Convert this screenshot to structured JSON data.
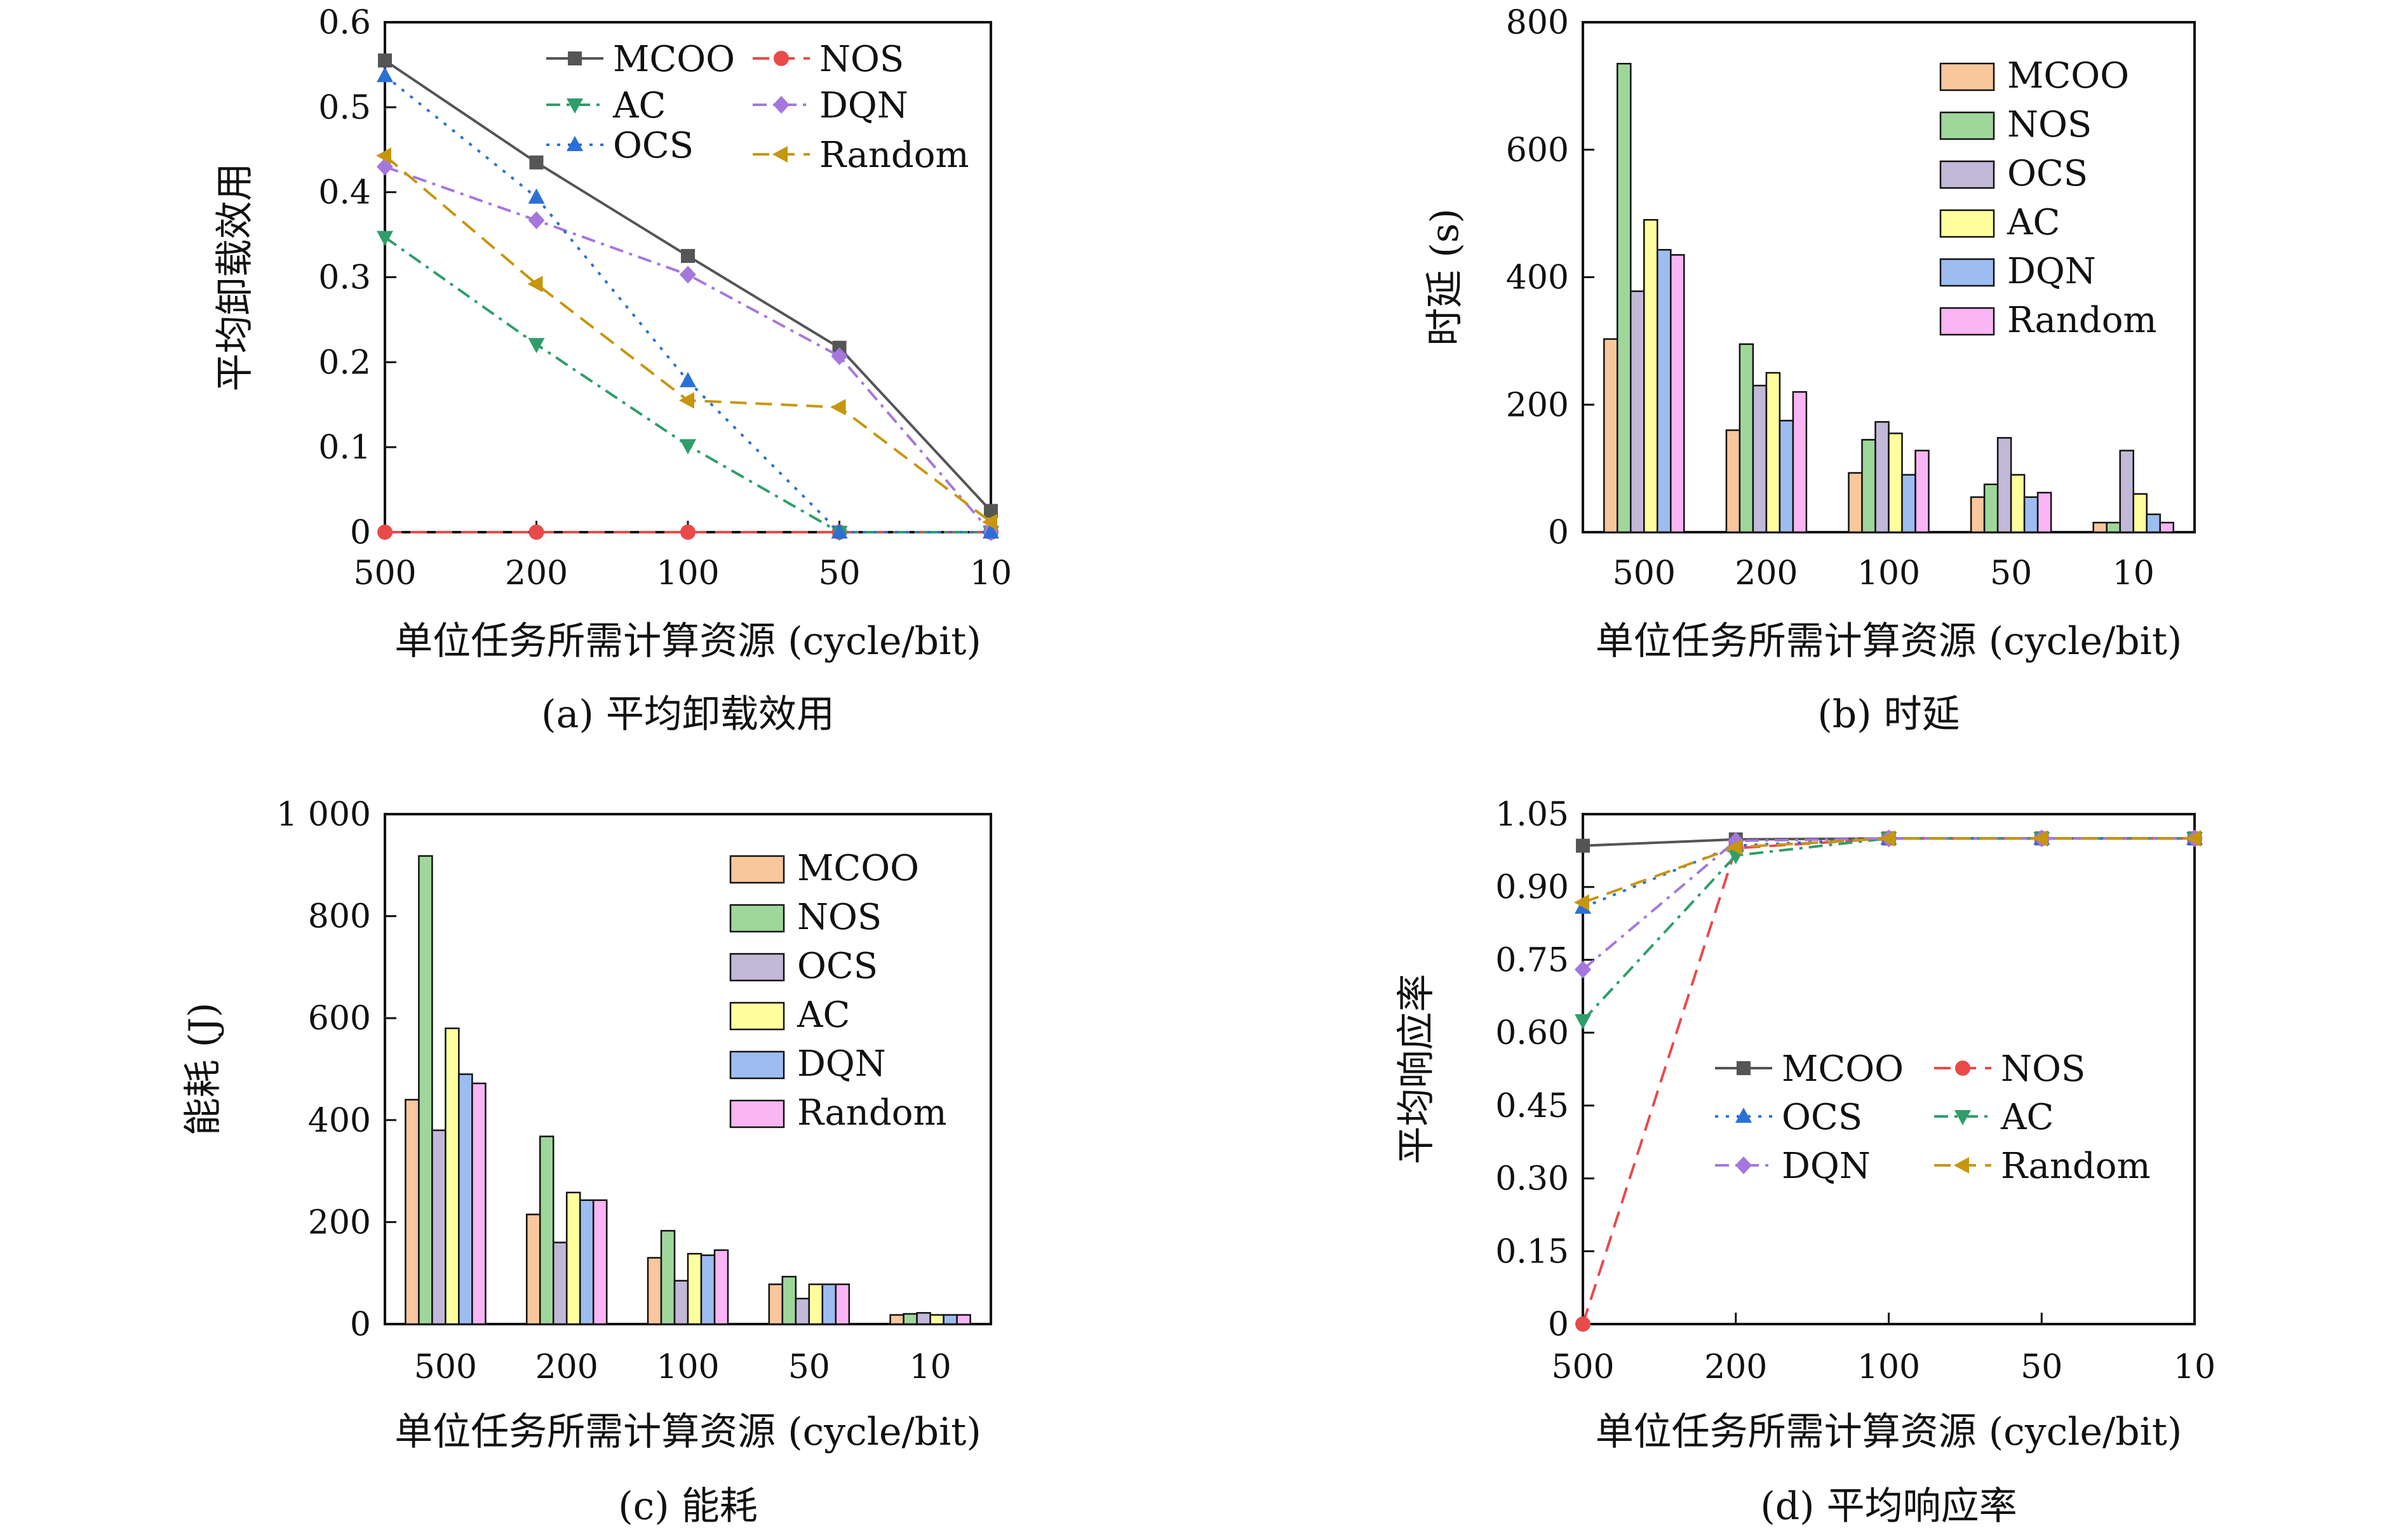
{
  "colors": {
    "MCOO": "#555555",
    "NOS": "#e84a4a",
    "OCS": "#2b70d6",
    "AC": "#2e9e6a",
    "DQN": "#a577dd",
    "Random": "#c6960e"
  },
  "bar_colors": {
    "MCOO": "#f8c79b",
    "NOS": "#9fd79a",
    "OCS": "#c2b8d8",
    "AC": "#ffff9e",
    "DQN": "#9dbdf1",
    "Random": "#f9b5f4"
  },
  "chart_data": [
    {
      "id": "a",
      "type": "line",
      "caption": "(a) 平均卸载效用",
      "xlabel": "单位任务所需计算资源 (cycle/bit)",
      "ylabel": "平均卸载效用",
      "categories": [
        "500",
        "200",
        "100",
        "50",
        "10"
      ],
      "ylim": [
        0,
        0.6
      ],
      "yticks": [
        "0",
        "0.1",
        "0.2",
        "0.3",
        "0.4",
        "0.5",
        "0.6"
      ],
      "grid": false,
      "legend_position": "top-right",
      "legend_columns": 2,
      "series": [
        {
          "name": "MCOO",
          "values": [
            0.555,
            0.435,
            0.325,
            0.217,
            0.025
          ],
          "marker": "square",
          "dash": "solid"
        },
        {
          "name": "NOS",
          "values": [
            0,
            0,
            0,
            0,
            0
          ],
          "marker": "circle",
          "dash": "dashed"
        },
        {
          "name": "AC",
          "values": [
            0.347,
            0.221,
            0.102,
            0,
            0
          ],
          "marker": "triangle-down",
          "dash": "dashdot"
        },
        {
          "name": "DQN",
          "values": [
            0.43,
            0.367,
            0.303,
            0.207,
            0
          ],
          "marker": "diamond",
          "dash": "dashdot"
        },
        {
          "name": "OCS",
          "values": [
            0.537,
            0.394,
            0.178,
            0,
            0
          ],
          "marker": "triangle-up",
          "dash": "dotted"
        },
        {
          "name": "Random",
          "values": [
            0.443,
            0.292,
            0.155,
            0.147,
            0.012
          ],
          "marker": "triangle-left",
          "dash": "dashed"
        }
      ]
    },
    {
      "id": "b",
      "type": "bar",
      "caption": "(b) 时延",
      "xlabel": "单位任务所需计算资源 (cycle/bit)",
      "ylabel": "时延 (s)",
      "categories": [
        "500",
        "200",
        "100",
        "50",
        "10"
      ],
      "ylim": [
        0,
        800
      ],
      "yticks": [
        "0",
        "200",
        "400",
        "600",
        "800"
      ],
      "grid": false,
      "legend_position": "top-right",
      "series": [
        {
          "name": "MCOO",
          "values": [
            303,
            160,
            93,
            55,
            15
          ]
        },
        {
          "name": "NOS",
          "values": [
            735,
            295,
            145,
            75,
            15
          ]
        },
        {
          "name": "OCS",
          "values": [
            378,
            230,
            173,
            148,
            128
          ]
        },
        {
          "name": "AC",
          "values": [
            490,
            250,
            155,
            90,
            60
          ]
        },
        {
          "name": "DQN",
          "values": [
            443,
            175,
            90,
            55,
            28
          ]
        },
        {
          "name": "Random",
          "values": [
            435,
            220,
            128,
            62,
            15
          ]
        }
      ]
    },
    {
      "id": "c",
      "type": "bar",
      "caption": "(c) 能耗",
      "xlabel": "单位任务所需计算资源 (cycle/bit)",
      "ylabel": "能耗 (J)",
      "categories": [
        "500",
        "200",
        "100",
        "50",
        "10"
      ],
      "ylim": [
        0,
        1000
      ],
      "yticks": [
        "0",
        "200",
        "400",
        "600",
        "800",
        "1 000"
      ],
      "grid": false,
      "legend_position": "top-right",
      "series": [
        {
          "name": "MCOO",
          "values": [
            440,
            215,
            130,
            78,
            18
          ]
        },
        {
          "name": "NOS",
          "values": [
            918,
            368,
            183,
            93,
            20
          ]
        },
        {
          "name": "OCS",
          "values": [
            380,
            160,
            85,
            50,
            22
          ]
        },
        {
          "name": "AC",
          "values": [
            580,
            258,
            138,
            78,
            18
          ]
        },
        {
          "name": "DQN",
          "values": [
            490,
            243,
            135,
            78,
            18
          ]
        },
        {
          "name": "Random",
          "values": [
            472,
            243,
            145,
            78,
            18
          ]
        }
      ]
    },
    {
      "id": "d",
      "type": "line",
      "caption": "(d) 平均响应率",
      "xlabel": "单位任务所需计算资源 (cycle/bit)",
      "ylabel": "平均响应率",
      "categories": [
        "500",
        "200",
        "100",
        "50",
        "10"
      ],
      "ylim": [
        0,
        1.05
      ],
      "yticks": [
        "0",
        "0.15",
        "0.30",
        "0.45",
        "0.60",
        "0.75",
        "0.90",
        "1.05"
      ],
      "grid": false,
      "legend_position": "center-right",
      "legend_columns": 2,
      "series": [
        {
          "name": "MCOO",
          "values": [
            0.985,
            0.998,
            1.0,
            1.0,
            1.0
          ],
          "marker": "square",
          "dash": "solid"
        },
        {
          "name": "NOS",
          "values": [
            0,
            0.98,
            1.0,
            1.0,
            1.0
          ],
          "marker": "circle",
          "dash": "dashed"
        },
        {
          "name": "OCS",
          "values": [
            0.858,
            0.985,
            1.0,
            1.0,
            1.0
          ],
          "marker": "triangle-up",
          "dash": "dotted"
        },
        {
          "name": "AC",
          "values": [
            0.625,
            0.965,
            1.0,
            1.0,
            1.0
          ],
          "marker": "triangle-down",
          "dash": "dashdot"
        },
        {
          "name": "DQN",
          "values": [
            0.73,
            0.995,
            1.0,
            1.0,
            1.0
          ],
          "marker": "diamond",
          "dash": "dashdot"
        },
        {
          "name": "Random",
          "values": [
            0.868,
            0.982,
            1.0,
            1.0,
            1.0
          ],
          "marker": "triangle-left",
          "dash": "dashed"
        }
      ]
    }
  ]
}
